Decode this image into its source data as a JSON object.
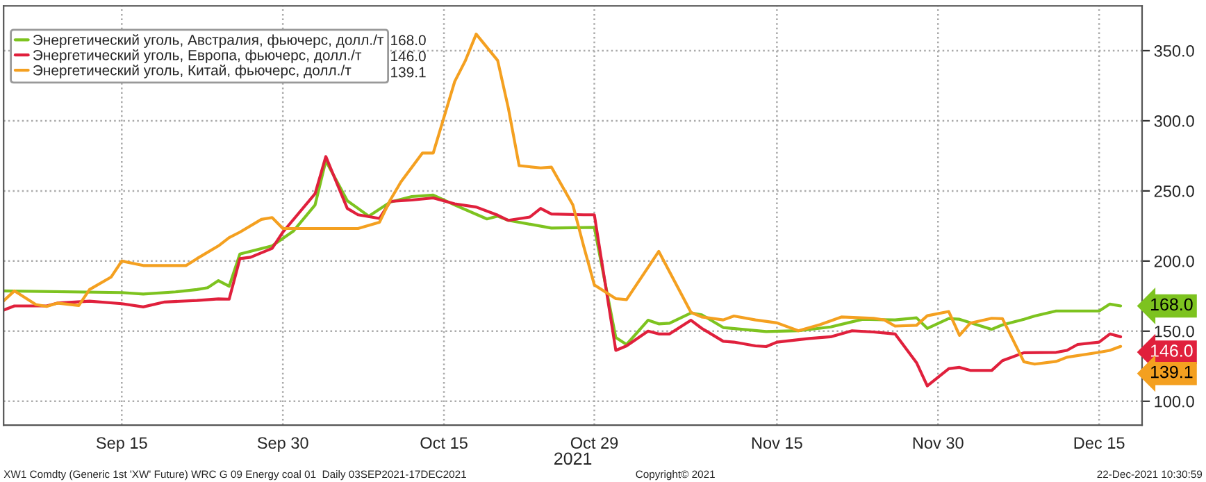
{
  "chart_data": {
    "type": "line",
    "xlabel": "2021",
    "xlim": [
      "2021-09-04",
      "2021-12-19"
    ],
    "xticks": [
      {
        "value": "2021-09-15",
        "label": "Sep 15"
      },
      {
        "value": "2021-09-30",
        "label": "Sep 30"
      },
      {
        "value": "2021-10-15",
        "label": "Oct 15"
      },
      {
        "value": "2021-10-29",
        "label": "Oct 29"
      },
      {
        "value": "2021-11-15",
        "label": "Nov 15"
      },
      {
        "value": "2021-11-30",
        "label": "Nov 30"
      },
      {
        "value": "2021-12-15",
        "label": "Dec 15"
      }
    ],
    "ylim": [
      83,
      382
    ],
    "yticks": [
      {
        "value": 100,
        "label": "100.0"
      },
      {
        "value": 150,
        "label": "150.0"
      },
      {
        "value": 200,
        "label": "200.0"
      },
      {
        "value": 250,
        "label": "250.0"
      },
      {
        "value": 300,
        "label": "300.0"
      },
      {
        "value": 350,
        "label": "350.0"
      }
    ],
    "grid": true,
    "legend": "top left",
    "marker": "none",
    "line_style": "solid",
    "series": [
      {
        "name": "Энергетический уголь, Австралия, фьючерс, долл./т",
        "color": "#7dc31f",
        "x": [
          "2021-09-04",
          "2021-09-15",
          "2021-09-17",
          "2021-09-20",
          "2021-09-22",
          "2021-09-23",
          "2021-09-24",
          "2021-09-25",
          "2021-09-26",
          "2021-09-29",
          "2021-10-01",
          "2021-10-03",
          "2021-10-04",
          "2021-10-06",
          "2021-10-08",
          "2021-10-10",
          "2021-10-12",
          "2021-10-14",
          "2021-10-16",
          "2021-10-19",
          "2021-10-20",
          "2021-10-21",
          "2021-10-25",
          "2021-10-29",
          "2021-10-31",
          "2021-11-01",
          "2021-11-03",
          "2021-11-04",
          "2021-11-05",
          "2021-11-07",
          "2021-11-08",
          "2021-11-10",
          "2021-11-14",
          "2021-11-17",
          "2021-11-20",
          "2021-11-23",
          "2021-11-26",
          "2021-11-28",
          "2021-11-29",
          "2021-12-01",
          "2021-12-02",
          "2021-12-05",
          "2021-12-06",
          "2021-12-08",
          "2021-12-09",
          "2021-12-11",
          "2021-12-15",
          "2021-12-16",
          "2021-12-17"
        ],
        "values": [
          178.7,
          177.5,
          176.5,
          178,
          179.7,
          181,
          186,
          182,
          205,
          210.8,
          221.5,
          240,
          271.5,
          243,
          232,
          242,
          246,
          247,
          240,
          230,
          232,
          229,
          223.5,
          224,
          145.4,
          140.5,
          157.8,
          155.2,
          155.7,
          163,
          161.7,
          152.6,
          149.7,
          150.3,
          153,
          158.5,
          158,
          159.5,
          152,
          159,
          158.5,
          151.3,
          154.5,
          158.5,
          160.8,
          164.4,
          164.4,
          169.3,
          168.0
        ],
        "value_labels": [
          null,
          null,
          null,
          null,
          null,
          null,
          null,
          null,
          null,
          null,
          null,
          null,
          null,
          null,
          null,
          null,
          null,
          null,
          null,
          null,
          null,
          null,
          null,
          null,
          null,
          null,
          null,
          null,
          null,
          null,
          null,
          null,
          null,
          null,
          null,
          null,
          null,
          null,
          null,
          null,
          null,
          null,
          null,
          null,
          null,
          null,
          null,
          null,
          "168.0"
        ]
      },
      {
        "name": "Энергетический уголь, Европа, фьючерс, долл./т",
        "color": "#e0203c",
        "x": [
          "2021-09-04",
          "2021-09-05",
          "2021-09-08",
          "2021-09-09",
          "2021-09-12",
          "2021-09-15",
          "2021-09-17",
          "2021-09-19",
          "2021-09-22",
          "2021-09-24",
          "2021-09-25",
          "2021-09-26",
          "2021-09-27",
          "2021-09-29",
          "2021-09-30",
          "2021-10-03",
          "2021-10-04",
          "2021-10-06",
          "2021-10-07",
          "2021-10-09",
          "2021-10-10",
          "2021-10-12",
          "2021-10-14",
          "2021-10-16",
          "2021-10-18",
          "2021-10-20",
          "2021-10-21",
          "2021-10-23",
          "2021-10-24",
          "2021-10-25",
          "2021-10-28",
          "2021-10-29",
          "2021-10-31",
          "2021-11-01",
          "2021-11-03",
          "2021-11-04",
          "2021-11-05",
          "2021-11-07",
          "2021-11-08",
          "2021-11-10",
          "2021-11-11",
          "2021-11-13",
          "2021-11-14",
          "2021-11-15",
          "2021-11-18",
          "2021-11-20",
          "2021-11-22",
          "2021-11-24",
          "2021-11-26",
          "2021-11-28",
          "2021-11-29",
          "2021-12-01",
          "2021-12-02",
          "2021-12-03",
          "2021-12-05",
          "2021-12-06",
          "2021-12-08",
          "2021-12-11",
          "2021-12-12",
          "2021-12-13",
          "2021-12-15",
          "2021-12-16",
          "2021-12-17"
        ],
        "values": [
          165,
          168,
          168,
          170,
          171.4,
          169.6,
          167.3,
          170.8,
          171.9,
          173,
          172.8,
          201.7,
          202.7,
          209,
          220.6,
          248,
          274.5,
          237.5,
          233,
          230.4,
          242.5,
          243.5,
          245,
          240.8,
          238.5,
          232.7,
          229,
          231.4,
          237.5,
          233.5,
          233,
          233,
          136.3,
          139.5,
          150,
          148,
          148,
          157.8,
          152,
          142.8,
          142.2,
          139.5,
          139,
          142.2,
          144.8,
          146,
          150.3,
          149.4,
          148,
          127.5,
          111,
          123.2,
          124.2,
          122,
          122,
          129,
          134.6,
          134.9,
          136.3,
          140.5,
          142.2,
          148,
          146.0
        ],
        "value_labels": [
          null,
          null,
          null,
          null,
          null,
          null,
          null,
          null,
          null,
          null,
          null,
          null,
          null,
          null,
          null,
          null,
          null,
          null,
          null,
          null,
          null,
          null,
          null,
          null,
          null,
          null,
          null,
          null,
          null,
          null,
          null,
          null,
          null,
          null,
          null,
          null,
          null,
          null,
          null,
          null,
          null,
          null,
          null,
          null,
          null,
          null,
          null,
          null,
          null,
          null,
          null,
          null,
          null,
          null,
          null,
          null,
          null,
          null,
          null,
          null,
          null,
          null,
          "146.0"
        ]
      },
      {
        "name": "Энергетический уголь, Китай, фьючерс, долл./т",
        "color": "#f4a020",
        "x": [
          "2021-09-04",
          "2021-09-05",
          "2021-09-07",
          "2021-09-08",
          "2021-09-09",
          "2021-09-11",
          "2021-09-12",
          "2021-09-14",
          "2021-09-15",
          "2021-09-17",
          "2021-09-21",
          "2021-09-22",
          "2021-09-24",
          "2021-09-25",
          "2021-09-26",
          "2021-09-28",
          "2021-09-29",
          "2021-09-30",
          "2021-10-07",
          "2021-10-09",
          "2021-10-10",
          "2021-10-11",
          "2021-10-13",
          "2021-10-14",
          "2021-10-16",
          "2021-10-17",
          "2021-10-18",
          "2021-10-20",
          "2021-10-21",
          "2021-10-22",
          "2021-10-24",
          "2021-10-25",
          "2021-10-27",
          "2021-10-28",
          "2021-10-29",
          "2021-10-31",
          "2021-11-01",
          "2021-11-04",
          "2021-11-07",
          "2021-11-08",
          "2021-11-10",
          "2021-11-11",
          "2021-11-13",
          "2021-11-15",
          "2021-11-17",
          "2021-11-19",
          "2021-11-21",
          "2021-11-24",
          "2021-11-25",
          "2021-11-26",
          "2021-11-28",
          "2021-11-29",
          "2021-12-01",
          "2021-12-02",
          "2021-12-03",
          "2021-12-05",
          "2021-12-06",
          "2021-12-08",
          "2021-12-09",
          "2021-12-11",
          "2021-12-12",
          "2021-12-15",
          "2021-12-16",
          "2021-12-17"
        ],
        "values": [
          171.6,
          178.7,
          169,
          167.6,
          170,
          168.3,
          179.7,
          188.5,
          200,
          196.8,
          196.8,
          201.7,
          210.8,
          216.7,
          220.6,
          229.7,
          231,
          223.2,
          223.2,
          227.7,
          243.5,
          256.5,
          277,
          277,
          328,
          343,
          361.8,
          343,
          308.8,
          268,
          266.4,
          267,
          240,
          210.8,
          183,
          173.2,
          172.5,
          206.9,
          163.4,
          160.1,
          158,
          160.8,
          158,
          155.9,
          150.3,
          154.6,
          160.1,
          159.2,
          158,
          153.6,
          154.2,
          161,
          164,
          147,
          155.7,
          159.2,
          158.9,
          128.1,
          126.5,
          128.4,
          131.4,
          134.9,
          136.3,
          139.1
        ],
        "value_labels": [
          null,
          null,
          null,
          null,
          null,
          null,
          null,
          null,
          null,
          null,
          null,
          null,
          null,
          null,
          null,
          null,
          null,
          null,
          null,
          null,
          null,
          null,
          null,
          null,
          null,
          null,
          null,
          null,
          null,
          null,
          null,
          null,
          null,
          null,
          null,
          null,
          null,
          null,
          null,
          null,
          null,
          null,
          null,
          null,
          null,
          null,
          null,
          null,
          null,
          null,
          null,
          null,
          null,
          null,
          null,
          null,
          null,
          null,
          null,
          null,
          null,
          null,
          null,
          "139.1"
        ]
      }
    ],
    "annotations": [
      "XW1 Comdty (Generic 1st 'XW' Future) WRC G 09 Energy coal 01  Daily 03SEP2021-17DEC2021",
      "Copyright© 2021",
      "22-Dec-2021 10:30:59"
    ]
  }
}
